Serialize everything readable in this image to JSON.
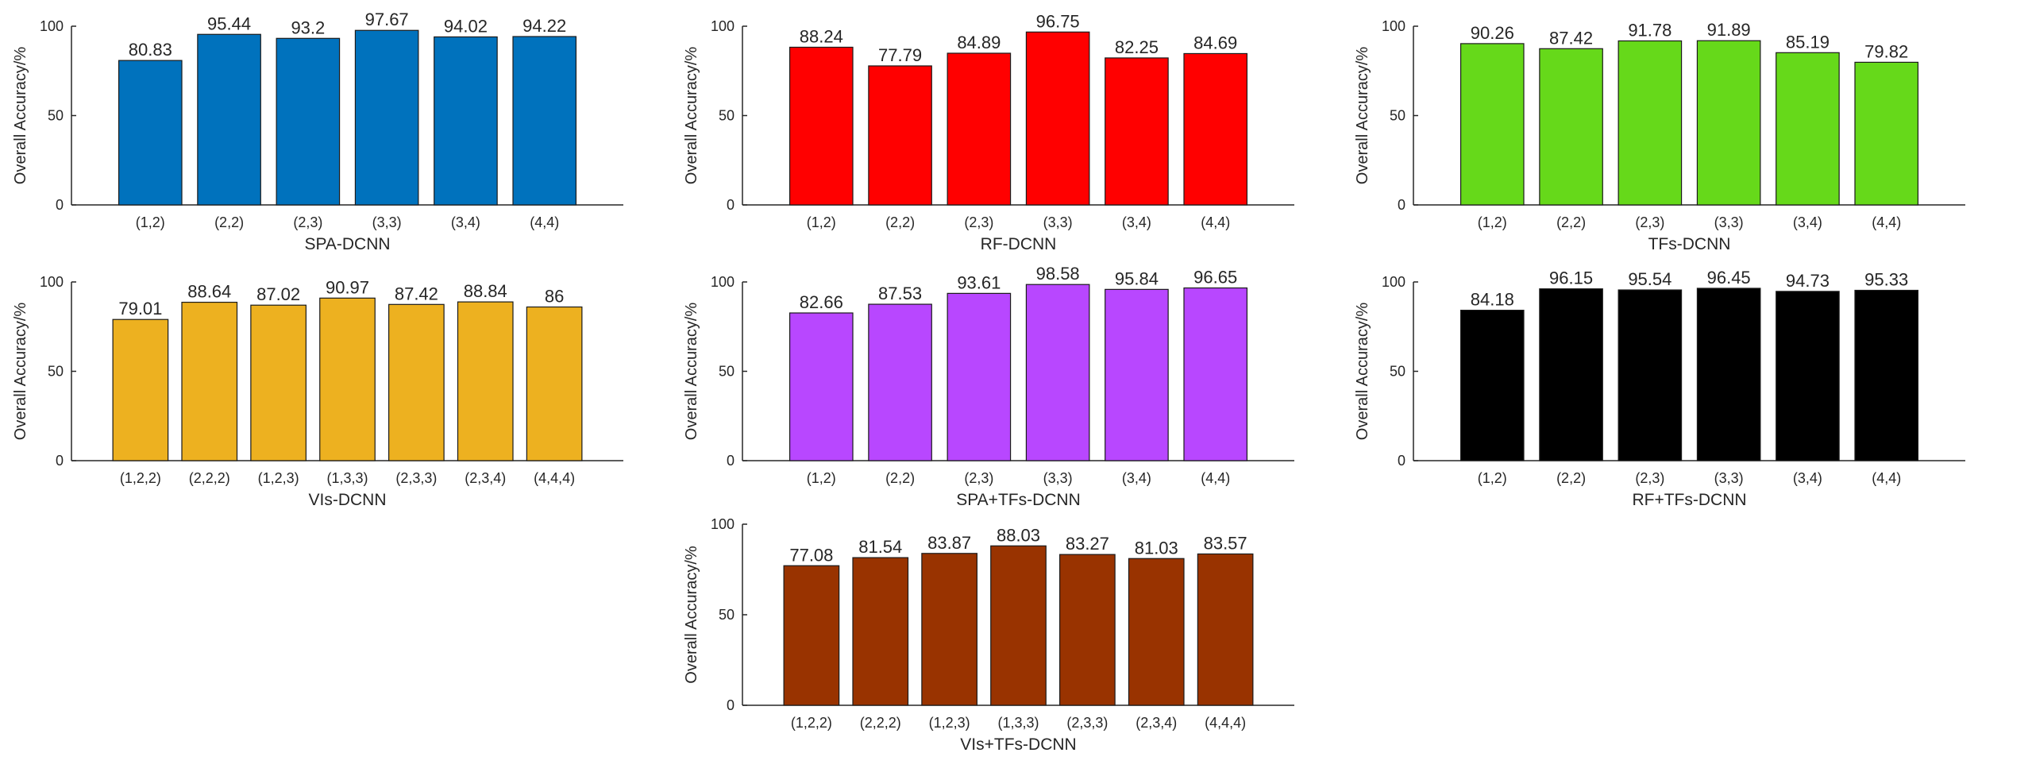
{
  "chart_data": [
    {
      "type": "bar",
      "title": "",
      "xlabel": "SPA-DCNN",
      "ylabel": "Overall Accuracy/%",
      "ylim": [
        0,
        100
      ],
      "yticks": [
        0,
        50,
        100
      ],
      "color": "#0072BD",
      "categories": [
        "(1,2)",
        "(2,2)",
        "(2,3)",
        "(3,3)",
        "(3,4)",
        "(4,4)"
      ],
      "values": [
        80.83,
        95.44,
        93.2,
        97.67,
        94.02,
        94.22
      ],
      "value_labels": [
        "80.83",
        "95.44",
        "93.2",
        "97.67",
        "94.02",
        "94.22"
      ]
    },
    {
      "type": "bar",
      "title": "",
      "xlabel": "RF-DCNN",
      "ylabel": "Overall Accuracy/%",
      "ylim": [
        0,
        100
      ],
      "yticks": [
        0,
        50,
        100
      ],
      "color": "#FF0000",
      "categories": [
        "(1,2)",
        "(2,2)",
        "(2,3)",
        "(3,3)",
        "(3,4)",
        "(4,4)"
      ],
      "values": [
        88.24,
        77.79,
        84.89,
        96.75,
        82.25,
        84.69
      ],
      "value_labels": [
        "88.24",
        "77.79",
        "84.89",
        "96.75",
        "82.25",
        "84.69"
      ]
    },
    {
      "type": "bar",
      "title": "",
      "xlabel": "TFs-DCNN",
      "ylabel": "Overall Accuracy/%",
      "ylim": [
        0,
        100
      ],
      "yticks": [
        0,
        50,
        100
      ],
      "color": "#66D91A",
      "categories": [
        "(1,2)",
        "(2,2)",
        "(2,3)",
        "(3,3)",
        "(3,4)",
        "(4,4)"
      ],
      "values": [
        90.26,
        87.42,
        91.78,
        91.89,
        85.19,
        79.82
      ],
      "value_labels": [
        "90.26",
        "87.42",
        "91.78",
        "91.89",
        "85.19",
        "79.82"
      ]
    },
    {
      "type": "bar",
      "title": "",
      "xlabel": "VIs-DCNN",
      "ylabel": "Overall Accuracy/%",
      "ylim": [
        0,
        100
      ],
      "yticks": [
        0,
        50,
        100
      ],
      "color": "#EDB120",
      "categories": [
        "(1,2,2)",
        "(2,2,2)",
        "(1,2,3)",
        "(1,3,3)",
        "(2,3,3)",
        "(2,3,4)",
        "(4,4,4)"
      ],
      "values": [
        79.01,
        88.64,
        87.02,
        90.97,
        87.42,
        88.84,
        86
      ],
      "value_labels": [
        "79.01",
        "88.64",
        "87.02",
        "90.97",
        "87.42",
        "88.84",
        "86"
      ]
    },
    {
      "type": "bar",
      "title": "",
      "xlabel": "SPA+TFs-DCNN",
      "ylabel": "Overall Accuracy/%",
      "ylim": [
        0,
        100
      ],
      "yticks": [
        0,
        50,
        100
      ],
      "color": "#B847FF",
      "categories": [
        "(1,2)",
        "(2,2)",
        "(2,3)",
        "(3,3)",
        "(3,4)",
        "(4,4)"
      ],
      "values": [
        82.66,
        87.53,
        93.61,
        98.58,
        95.84,
        96.65
      ],
      "value_labels": [
        "82.66",
        "87.53",
        "93.61",
        "98.58",
        "95.84",
        "96.65"
      ]
    },
    {
      "type": "bar",
      "title": "",
      "xlabel": "RF+TFs-DCNN",
      "ylabel": "Overall Accuracy/%",
      "ylim": [
        0,
        100
      ],
      "yticks": [
        0,
        50,
        100
      ],
      "color": "#000000",
      "categories": [
        "(1,2)",
        "(2,2)",
        "(2,3)",
        "(3,3)",
        "(3,4)",
        "(4,4)"
      ],
      "values": [
        84.18,
        96.15,
        95.54,
        96.45,
        94.73,
        95.33
      ],
      "value_labels": [
        "84.18",
        "96.15",
        "95.54",
        "96.45",
        "94.73",
        "95.33"
      ]
    },
    {
      "type": "bar",
      "title": "",
      "xlabel": "VIs+TFs-DCNN",
      "ylabel": "Overall Accuracy/%",
      "ylim": [
        0,
        100
      ],
      "yticks": [
        0,
        50,
        100
      ],
      "color": "#993300",
      "categories": [
        "(1,2,2)",
        "(2,2,2)",
        "(1,2,3)",
        "(1,3,3)",
        "(2,3,3)",
        "(2,3,4)",
        "(4,4,4)"
      ],
      "values": [
        77.08,
        81.54,
        83.87,
        88.03,
        83.27,
        81.03,
        83.57
      ],
      "value_labels": [
        "77.08",
        "81.54",
        "83.87",
        "88.03",
        "83.27",
        "81.03",
        "83.57"
      ]
    }
  ]
}
